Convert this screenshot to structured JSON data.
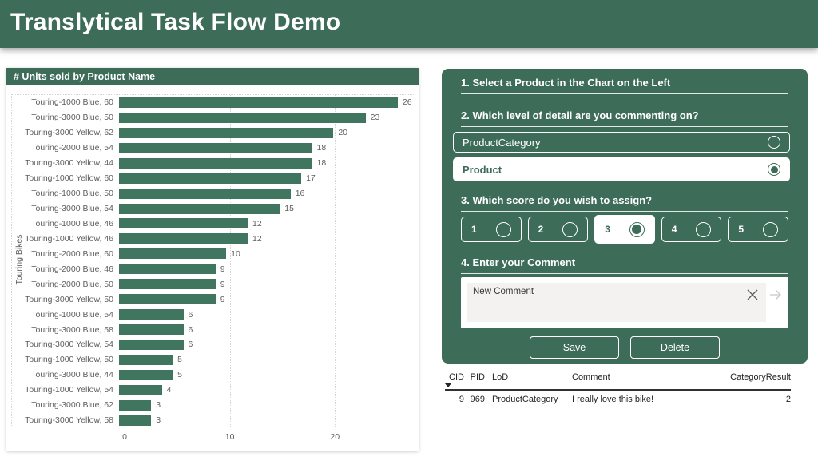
{
  "header": {
    "title": "Translytical Task Flow Demo"
  },
  "colors": {
    "green": "#3D6C59",
    "bar_green": "#40755F",
    "label_gray": "#5F5F5F",
    "input_gray": "#F3F2F1",
    "table_text": "#252423"
  },
  "chart_data": {
    "type": "bar",
    "orientation": "horizontal",
    "title": "# Units sold by Product Name",
    "group_axis_label": "Touring Bikes",
    "xlabel": "",
    "xlim": [
      0,
      27.5
    ],
    "x_ticks": [
      0,
      10,
      20
    ],
    "grid": "dotted",
    "categories": [
      "Touring-1000 Blue, 60",
      "Touring-3000 Blue, 50",
      "Touring-3000 Yellow, 62",
      "Touring-2000 Blue, 54",
      "Touring-3000 Yellow, 44",
      "Touring-1000 Yellow, 60",
      "Touring-1000 Blue, 50",
      "Touring-3000 Blue, 54",
      "Touring-1000 Blue, 46",
      "Touring-1000 Yellow, 46",
      "Touring-2000 Blue, 60",
      "Touring-2000 Blue, 46",
      "Touring-2000 Blue, 50",
      "Touring-3000 Yellow, 50",
      "Touring-1000 Blue, 54",
      "Touring-3000 Blue, 58",
      "Touring-3000 Yellow, 54",
      "Touring-1000 Yellow, 50",
      "Touring-3000 Blue, 44",
      "Touring-1000 Yellow, 54",
      "Touring-3000 Blue, 62",
      "Touring-3000 Yellow, 58"
    ],
    "values": [
      26,
      23,
      20,
      18,
      18,
      17,
      16,
      15,
      12,
      12,
      10,
      9,
      9,
      9,
      6,
      6,
      6,
      5,
      5,
      4,
      3,
      3
    ]
  },
  "form": {
    "step1_heading": "1. Select a Product in the Chart on the Left",
    "step2_heading": "2. Which level of detail are you commenting on?",
    "lod_options": [
      {
        "label": "ProductCategory",
        "selected": false
      },
      {
        "label": "Product",
        "selected": true
      }
    ],
    "step3_heading": "3. Which score do you wish to assign?",
    "score_options": [
      {
        "label": "1",
        "selected": false
      },
      {
        "label": "2",
        "selected": false
      },
      {
        "label": "3",
        "selected": true
      },
      {
        "label": "4",
        "selected": false
      },
      {
        "label": "5",
        "selected": false
      }
    ],
    "step4_heading": "4. Enter your Comment",
    "comment_value": "New Comment",
    "clear_icon": "x-icon",
    "send_icon": "arrow-right-icon",
    "save_label": "Save",
    "delete_label": "Delete"
  },
  "table": {
    "columns": [
      {
        "label": "CID",
        "align": "right",
        "sorted": "desc"
      },
      {
        "label": "PID",
        "align": "right"
      },
      {
        "label": "LoD",
        "align": "left"
      },
      {
        "label": "Comment",
        "align": "left"
      },
      {
        "label": "CategoryResult",
        "align": "right"
      }
    ],
    "rows": [
      [
        "9",
        "969",
        "ProductCategory",
        "I really love this bike!",
        "2"
      ]
    ]
  }
}
